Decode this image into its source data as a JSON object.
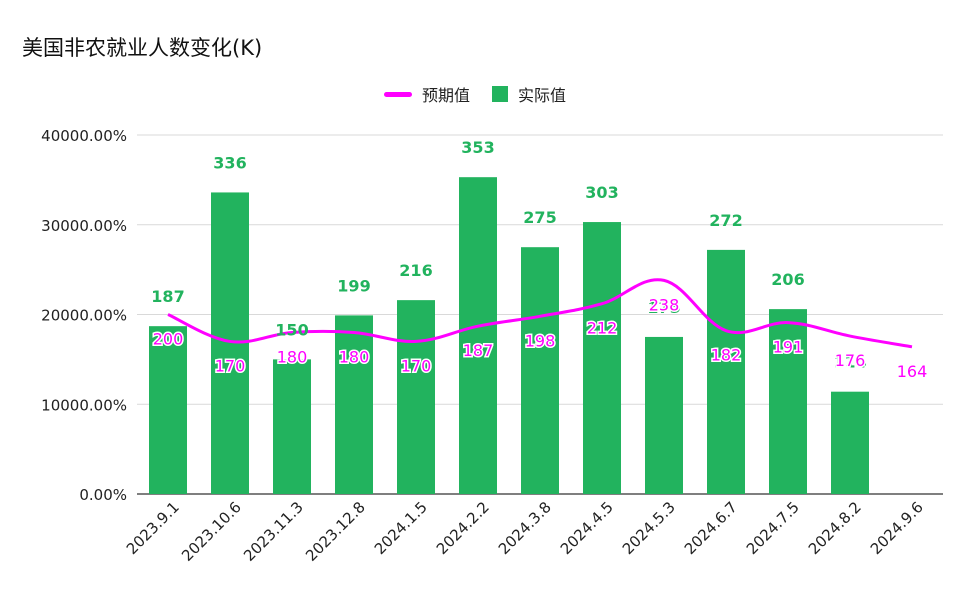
{
  "chart_data": {
    "type": "bar",
    "title": "美国非农就业人数变化(K)",
    "categories": [
      "2023.9.1",
      "2023.10.6",
      "2023.11.3",
      "2023.12.8",
      "2024.1.5",
      "2024.2.2",
      "2024.3.8",
      "2024.4.5",
      "2024.5.3",
      "2024.6.7",
      "2024.7.5",
      "2024.8.2",
      "2024.9.6"
    ],
    "series": [
      {
        "name": "预期值",
        "type": "line",
        "color": "#ff00ff",
        "values": [
          200,
          170,
          180,
          180,
          170,
          187,
          198,
          212,
          238,
          182,
          191,
          176,
          164
        ]
      },
      {
        "name": "实际值",
        "type": "bar",
        "color": "#22b35e",
        "values": [
          187,
          336,
          150,
          199,
          216,
          353,
          275,
          303,
          175,
          272,
          206,
          114,
          null
        ]
      }
    ],
    "yticks": [
      "0.00%",
      "10000.00%",
      "20000.00%",
      "30000.00%",
      "40000.00%"
    ],
    "ylim": [
      0,
      400
    ],
    "legend_position": "top-center",
    "grid": true
  }
}
